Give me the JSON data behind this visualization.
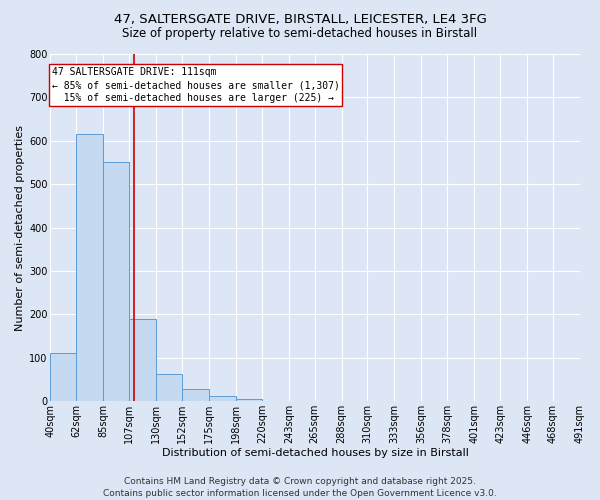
{
  "title_line1": "47, SALTERSGATE DRIVE, BIRSTALL, LEICESTER, LE4 3FG",
  "title_line2": "Size of property relative to semi-detached houses in Birstall",
  "xlabel": "Distribution of semi-detached houses by size in Birstall",
  "ylabel": "Number of semi-detached properties",
  "footer_line1": "Contains HM Land Registry data © Crown copyright and database right 2025.",
  "footer_line2": "Contains public sector information licensed under the Open Government Licence v3.0.",
  "bin_edges": [
    40,
    62,
    85,
    107,
    130,
    152,
    175,
    198,
    220,
    243,
    265,
    288,
    310,
    333,
    356,
    378,
    401,
    423,
    446,
    468,
    491
  ],
  "bin_labels": [
    "40sqm",
    "62sqm",
    "85sqm",
    "107sqm",
    "130sqm",
    "152sqm",
    "175sqm",
    "198sqm",
    "220sqm",
    "243sqm",
    "265sqm",
    "288sqm",
    "310sqm",
    "333sqm",
    "356sqm",
    "378sqm",
    "401sqm",
    "423sqm",
    "446sqm",
    "468sqm",
    "491sqm"
  ],
  "bar_heights": [
    110,
    615,
    550,
    190,
    63,
    27,
    11,
    5,
    0,
    0,
    0,
    0,
    0,
    0,
    0,
    0,
    0,
    0,
    0,
    0
  ],
  "bar_color": "#c5d9f0",
  "bar_edge_color": "#5b9bd5",
  "property_size": 111,
  "vline_color": "#cc0000",
  "annotation_line1": "47 SALTERSGATE DRIVE: 111sqm",
  "annotation_line2": "← 85% of semi-detached houses are smaller (1,307)",
  "annotation_line3": "  15% of semi-detached houses are larger (225) →",
  "annotation_box_color": "#ffffff",
  "annotation_box_edge": "#cc0000",
  "ylim": [
    0,
    800
  ],
  "yticks": [
    0,
    100,
    200,
    300,
    400,
    500,
    600,
    700,
    800
  ],
  "background_color": "#dce6f5",
  "plot_bg_color": "#dce6f5",
  "grid_color": "#ffffff",
  "title_fontsize": 9.5,
  "subtitle_fontsize": 8.5,
  "axis_label_fontsize": 8,
  "tick_fontsize": 7,
  "annotation_fontsize": 7,
  "footer_fontsize": 6.5
}
